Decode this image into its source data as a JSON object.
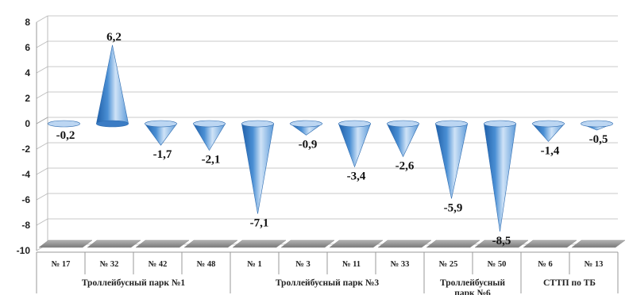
{
  "chart_data": {
    "type": "bar",
    "shape": "cone",
    "ylim": [
      -10,
      8
    ],
    "yticks": [
      8,
      6,
      4,
      2,
      0,
      -2,
      -4,
      -6,
      -8,
      -10
    ],
    "grid": true,
    "bar_color": "#4a8fd4",
    "floor_color": "#9a9a9a",
    "categories": [
      "№ 17",
      "№ 32",
      "№ 42",
      "№ 48",
      "№ 1",
      "№ 3",
      "№ 11",
      "№ 33",
      "№ 25",
      "№ 50",
      "№ 6",
      "№ 13"
    ],
    "values": [
      -0.2,
      6.2,
      -1.7,
      -2.1,
      -7.1,
      -0.9,
      -3.4,
      -2.6,
      -5.9,
      -8.5,
      -1.4,
      -0.5
    ],
    "value_labels": [
      "-0,2",
      "6,2",
      "-1,7",
      "-2,1",
      "-7,1",
      "-0,9",
      "-3,4",
      "-2,6",
      "-5,9",
      "-8,5",
      "-1,4",
      "-0,5"
    ],
    "groups": [
      {
        "lines": [
          "Троллейбусный парк №1"
        ],
        "span": 4
      },
      {
        "lines": [
          "Троллейбусный парк №3"
        ],
        "span": 4
      },
      {
        "lines": [
          "Троллейбусный",
          "парк №6"
        ],
        "span": 2
      },
      {
        "lines": [
          "СТТП по ТБ"
        ],
        "span": 2
      }
    ]
  }
}
